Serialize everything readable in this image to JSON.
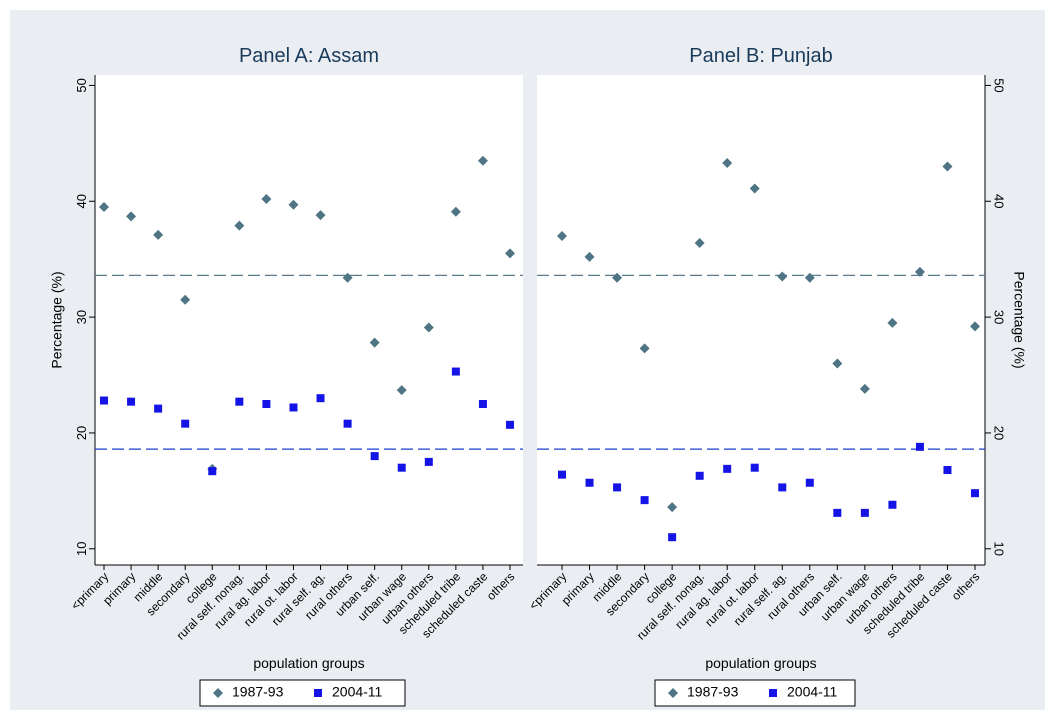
{
  "chart_data": [
    {
      "type": "scatter",
      "title": "Panel A: Assam",
      "xlabel": "population groups",
      "ylabel": "Percentage (%)",
      "yaxis_side": "left",
      "categories": [
        "<primary",
        "primary",
        "middle",
        "secondary",
        "college",
        "rural self. nonag.",
        "rural ag. labor",
        "rural ot. labor",
        "rural self. ag.",
        "rural others",
        "urban self.",
        "urban wage",
        "urban others",
        "scheduled tribe",
        "scheduled caste",
        "others"
      ],
      "series": [
        {
          "name": "1987-93",
          "color": "#4f7585",
          "marker": "diamond",
          "values": [
            39.5,
            38.7,
            37.1,
            31.5,
            16.9,
            37.9,
            40.2,
            39.7,
            38.8,
            33.4,
            27.8,
            23.7,
            29.1,
            39.1,
            43.5,
            35.5
          ]
        },
        {
          "name": "2004-11",
          "color": "#1414e6",
          "marker": "square",
          "values": [
            22.8,
            22.7,
            22.1,
            20.8,
            16.7,
            22.7,
            22.5,
            22.2,
            23.0,
            20.8,
            18.0,
            17.0,
            17.5,
            25.3,
            22.5,
            20.7
          ]
        }
      ],
      "hlines": [
        {
          "value": 33.6,
          "color": "#5b7b8e"
        },
        {
          "value": 18.6,
          "color": "#1a3ccf"
        }
      ],
      "ylim": [
        8.6,
        50.9
      ],
      "yticks": [
        10,
        20,
        30,
        40,
        50
      ]
    },
    {
      "type": "scatter",
      "title": "Panel B: Punjab",
      "xlabel": "population groups",
      "ylabel": "Percentage (%)",
      "yaxis_side": "right",
      "categories": [
        "<primary",
        "primary",
        "middle",
        "secondary",
        "college",
        "rural self. nonag.",
        "rural ag. labor",
        "rural ot. labor",
        "rural self. ag.",
        "rural others",
        "urban self.",
        "urban wage",
        "urban others",
        "scheduled tribe",
        "scheduled caste",
        "others"
      ],
      "series": [
        {
          "name": "1987-93",
          "color": "#4f7585",
          "marker": "diamond",
          "values": [
            37.0,
            35.2,
            33.4,
            27.3,
            13.6,
            36.4,
            43.3,
            41.1,
            33.5,
            33.4,
            26.0,
            23.8,
            29.5,
            33.9,
            43.0,
            29.2
          ]
        },
        {
          "name": "2004-11",
          "color": "#1414e6",
          "marker": "square",
          "values": [
            16.4,
            15.7,
            15.3,
            14.2,
            11.0,
            16.3,
            16.9,
            17.0,
            15.3,
            15.7,
            13.1,
            13.1,
            13.8,
            18.8,
            16.8,
            14.8
          ]
        }
      ],
      "hlines": [
        {
          "value": 33.6,
          "color": "#5b7b8e"
        },
        {
          "value": 18.6,
          "color": "#1a3ccf"
        }
      ],
      "ylim": [
        8.6,
        50.9
      ],
      "yticks": [
        10,
        20,
        30,
        40,
        50
      ]
    }
  ]
}
